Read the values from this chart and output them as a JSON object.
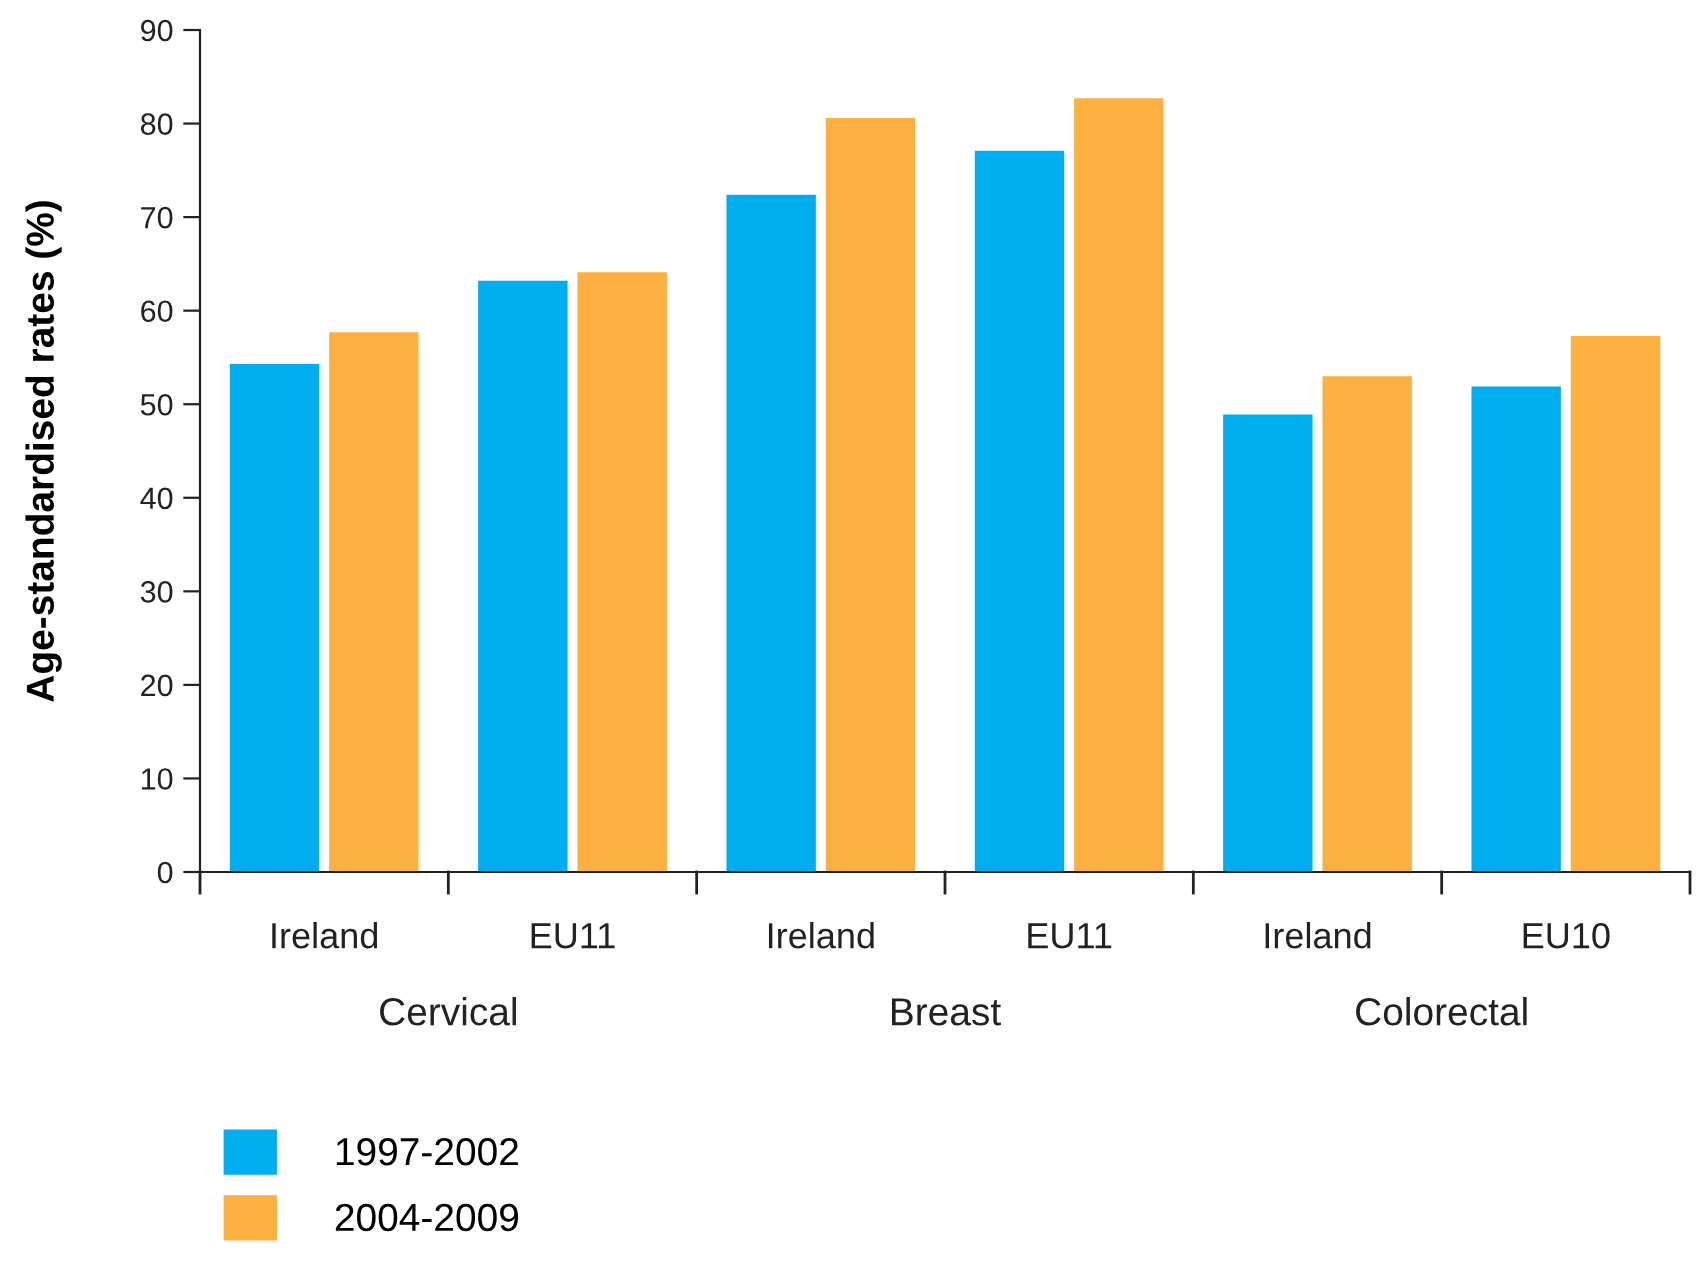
{
  "chart_data": {
    "type": "bar",
    "ylabel": "Age-standardised rates (%)",
    "categories": [
      "Ireland",
      "EU11",
      "Ireland",
      "EU11",
      "Ireland",
      "EU10"
    ],
    "series": [
      {
        "name": "1997-2002",
        "color": "#00aeef",
        "values": [
          54.3,
          63.2,
          72.4,
          77.1,
          48.9,
          51.9
        ]
      },
      {
        "name": "2004-2009",
        "color": "#fbb040",
        "values": [
          57.7,
          64.1,
          80.6,
          82.7,
          53.0,
          57.3
        ]
      }
    ],
    "annotations": [
      "Cervical",
      "Breast",
      "Colorectal"
    ],
    "ylim": [
      0,
      90
    ],
    "yticks": [
      0,
      10,
      20,
      30,
      40,
      50,
      60,
      70,
      80,
      90
    ],
    "legend": "bottom left",
    "grid": false
  }
}
